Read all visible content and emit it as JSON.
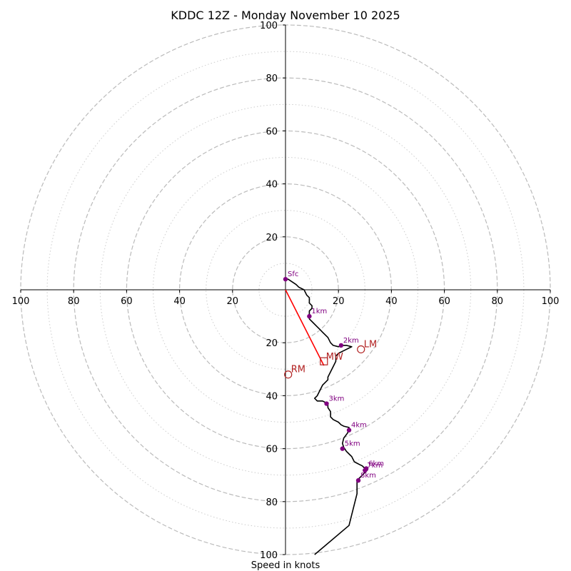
{
  "chart_data": {
    "type": "hodograph",
    "title": "KDDC 12Z - Monday November 10 2025",
    "xlabel": "Speed in knots",
    "ylabel": "",
    "range": [
      -100,
      100
    ],
    "tick_values": [
      -100,
      -80,
      -60,
      -40,
      -20,
      20,
      40,
      60,
      80,
      100
    ],
    "tick_labels": [
      "100",
      "80",
      "60",
      "40",
      "20",
      "20",
      "40",
      "60",
      "80",
      "100"
    ],
    "rings_dashed": [
      20,
      40,
      60,
      80,
      100
    ],
    "rings_dotted": [
      10,
      30,
      50,
      70,
      90
    ],
    "colors": {
      "trace": "#000000",
      "heights": "#800080",
      "storm_motion": "#b22222",
      "mean_wind_line": "#ff0000",
      "rings": "#bbbbbb",
      "axes": "#000000"
    },
    "trace": [
      [
        0,
        4
      ],
      [
        1,
        4
      ],
      [
        4,
        2
      ],
      [
        5,
        1
      ],
      [
        7,
        0
      ],
      [
        8,
        -2
      ],
      [
        9,
        -3
      ],
      [
        9,
        -5
      ],
      [
        10,
        -6
      ],
      [
        10,
        -7
      ],
      [
        9,
        -8
      ],
      [
        9,
        -10
      ],
      [
        9,
        -11
      ],
      [
        10,
        -12
      ],
      [
        12,
        -14
      ],
      [
        13,
        -15
      ],
      [
        14,
        -16
      ],
      [
        15,
        -17
      ],
      [
        16,
        -18
      ],
      [
        17,
        -20
      ],
      [
        18,
        -21
      ],
      [
        20,
        -21.5
      ],
      [
        21,
        -21
      ],
      [
        23,
        -21
      ],
      [
        25,
        -21.5
      ],
      [
        24,
        -22
      ],
      [
        22,
        -23
      ],
      [
        20,
        -24
      ],
      [
        19,
        -25
      ],
      [
        19,
        -27
      ],
      [
        18,
        -29
      ],
      [
        17,
        -31
      ],
      [
        16,
        -33
      ],
      [
        16,
        -34
      ],
      [
        15,
        -35
      ],
      [
        14,
        -36
      ],
      [
        13,
        -38
      ],
      [
        12,
        -40
      ],
      [
        11,
        -41
      ],
      [
        12,
        -42
      ],
      [
        14,
        -42
      ],
      [
        15,
        -42.5
      ],
      [
        16,
        -43
      ],
      [
        16,
        -44.5
      ],
      [
        17,
        -46
      ],
      [
        17,
        -48
      ],
      [
        18,
        -49
      ],
      [
        20,
        -50
      ],
      [
        21,
        -51
      ],
      [
        22,
        -51.5
      ],
      [
        24,
        -52
      ],
      [
        23.5,
        -54
      ],
      [
        22,
        -56
      ],
      [
        21.5,
        -58
      ],
      [
        22,
        -59.5
      ],
      [
        23,
        -61
      ],
      [
        24,
        -62
      ],
      [
        25,
        -63
      ],
      [
        25.5,
        -64
      ],
      [
        26,
        -65
      ],
      [
        27,
        -65.5
      ],
      [
        28,
        -66
      ],
      [
        29,
        -66.5
      ],
      [
        30,
        -67.5
      ],
      [
        31,
        -68
      ],
      [
        30,
        -69
      ],
      [
        29,
        -70
      ],
      [
        28,
        -71
      ],
      [
        27,
        -72
      ],
      [
        27,
        -74
      ],
      [
        27,
        -77
      ],
      [
        24,
        -89
      ],
      [
        11,
        -100
      ]
    ],
    "height_markers": [
      {
        "label": "Sfc",
        "u": 0,
        "v": 4
      },
      {
        "label": "1km",
        "u": 9,
        "v": -10
      },
      {
        "label": "2km",
        "u": 21,
        "v": -21
      },
      {
        "label": "3km",
        "u": 15.5,
        "v": -43
      },
      {
        "label": "4km",
        "u": 24,
        "v": -53
      },
      {
        "label": "5km",
        "u": 21.5,
        "v": -60
      },
      {
        "label": "6km",
        "u": 30.5,
        "v": -67.5
      },
      {
        "label": "7km",
        "u": 30,
        "v": -68.2
      },
      {
        "label": "8km",
        "u": 27.5,
        "v": -72
      }
    ],
    "storm_motion": {
      "RM": {
        "label": "RM",
        "u": 1,
        "v": -32
      },
      "LM": {
        "label": "LM",
        "u": 28.5,
        "v": -22.5
      },
      "MW": {
        "label": "MW",
        "u": 14.5,
        "v": -27
      }
    }
  }
}
